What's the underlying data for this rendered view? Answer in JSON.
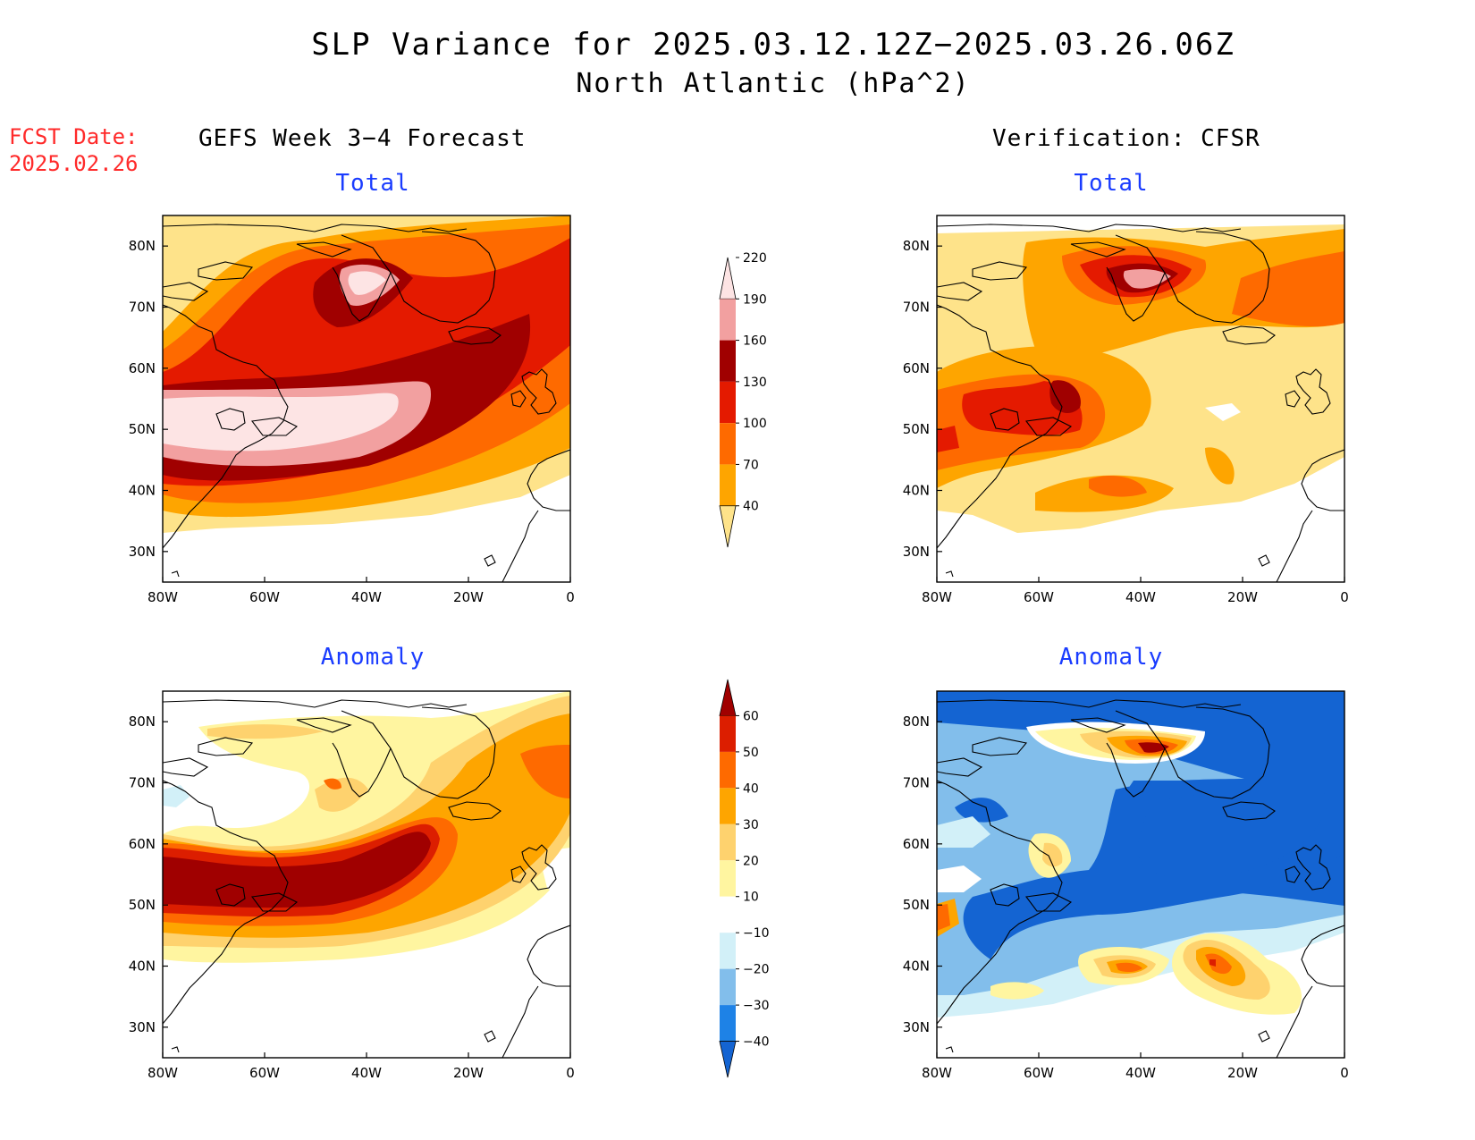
{
  "title": {
    "line1": "SLP Variance for 2025.03.12.12Z−2025.03.26.06Z",
    "line2": "North Atlantic (hPa^2)"
  },
  "fcst_date": {
    "line1": "FCST Date:",
    "line2": "2025.02.26"
  },
  "columns": {
    "left": "GEFS Week 3−4 Forecast",
    "right": "Verification: CFSR"
  },
  "panel_subtitles": {
    "total": "Total",
    "anomaly": "Anomaly"
  },
  "axes": {
    "lon_labels": [
      "80W",
      "60W",
      "40W",
      "20W",
      "0"
    ],
    "lat_labels": [
      "80N",
      "70N",
      "60N",
      "50N",
      "40N",
      "30N"
    ],
    "lon_range": [
      -80,
      0
    ],
    "lat_range": [
      25,
      85
    ]
  },
  "colorbar_total": {
    "levels": [
      "40",
      "70",
      "100",
      "130",
      "160",
      "190",
      "220"
    ],
    "colors": [
      "#fee38a",
      "#fea500",
      "#fe6a00",
      "#e41a00",
      "#a00000",
      "#f2a0a0",
      "#fde4e4"
    ]
  },
  "colorbar_anomaly": {
    "levels": [
      "−40",
      "−30",
      "−20",
      "−10",
      "10",
      "20",
      "30",
      "40",
      "50",
      "60"
    ],
    "colors": [
      "#1464d2",
      "#1e82e6",
      "#82beeb",
      "#d2f0f8",
      "#ffffff",
      "#fff5a0",
      "#fed26e",
      "#fea500",
      "#fe6a00",
      "#dc1e00",
      "#a00000"
    ]
  },
  "chart_data": [
    {
      "type": "heatmap",
      "panel": "GEFS Week 3-4 Forecast Total",
      "field": "SLP variance (hPa^2)",
      "regions": [
        {
          "lon": -52,
          "lat": 52,
          "value": 220
        },
        {
          "lon": -40,
          "lat": 74,
          "value": 220
        },
        {
          "lon": -60,
          "lat": 45,
          "value": 175
        },
        {
          "lon": -25,
          "lat": 62,
          "value": 150
        },
        {
          "lon": -10,
          "lat": 70,
          "value": 130
        },
        {
          "lon": -15,
          "lat": 50,
          "value": 100
        },
        {
          "lon": -70,
          "lat": 75,
          "value": 40
        }
      ]
    },
    {
      "type": "heatmap",
      "panel": "Verification CFSR Total",
      "field": "SLP variance (hPa^2)",
      "regions": [
        {
          "lon": -38,
          "lat": 73,
          "value": 200
        },
        {
          "lon": -53,
          "lat": 52,
          "value": 165
        },
        {
          "lon": -72,
          "lat": 52,
          "value": 130
        },
        {
          "lon": -5,
          "lat": 70,
          "value": 100
        },
        {
          "lon": -38,
          "lat": 40,
          "value": 100
        },
        {
          "lon": -25,
          "lat": 50,
          "value": 40
        }
      ]
    },
    {
      "type": "heatmap",
      "panel": "GEFS Week 3-4 Forecast Anomaly",
      "field": "SLP variance anomaly (hPa^2)",
      "regions": [
        {
          "lon": -55,
          "lat": 50,
          "value": 65
        },
        {
          "lon": -20,
          "lat": 62,
          "value": 40
        },
        {
          "lon": -45,
          "lat": 66,
          "value": 30
        },
        {
          "lon": -50,
          "lat": 76,
          "value": 20
        }
      ]
    },
    {
      "type": "heatmap",
      "panel": "Verification CFSR Anomaly",
      "field": "SLP variance anomaly (hPa^2)",
      "regions": [
        {
          "lon": -37,
          "lat": 75,
          "value": 60
        },
        {
          "lon": -22,
          "lat": 40,
          "value": 55
        },
        {
          "lon": -40,
          "lat": 39,
          "value": 45
        },
        {
          "lon": -53,
          "lat": 56,
          "value": 30
        },
        {
          "lon": -35,
          "lat": 57,
          "value": -45
        },
        {
          "lon": -40,
          "lat": 82,
          "value": -40
        },
        {
          "lon": -55,
          "lat": 44,
          "value": -40
        }
      ]
    }
  ]
}
